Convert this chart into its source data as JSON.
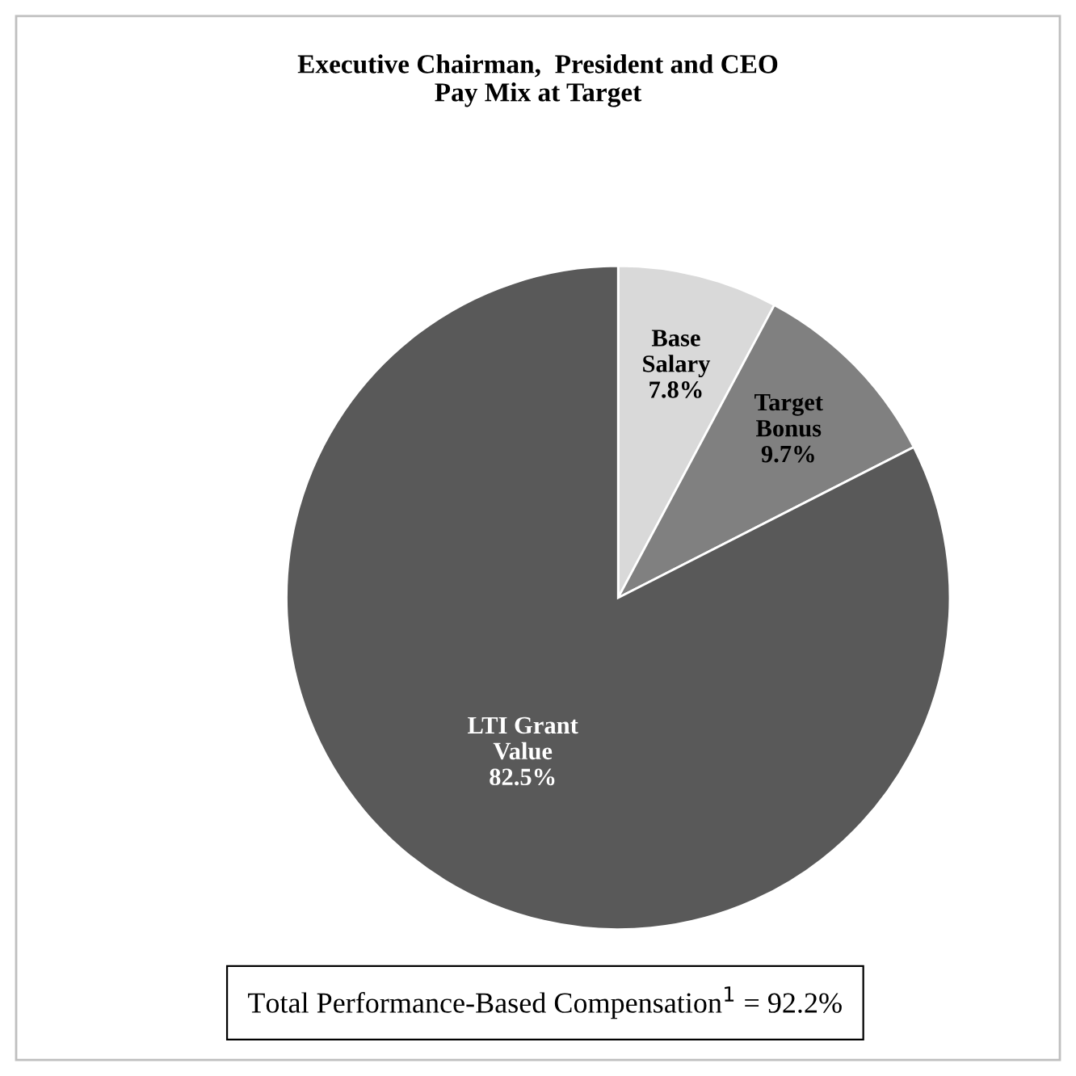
{
  "chart_data": {
    "type": "pie",
    "title": "Executive Chairman,  President and CEO\nPay Mix at Target",
    "categories": [
      "Base\nSalary",
      "Target\nBonus",
      "LTI Grant\nValue"
    ],
    "values": [
      7.8,
      9.7,
      82.5
    ],
    "colors": [
      "#d9d9d9",
      "#808080",
      "#595959"
    ],
    "value_labels": [
      "7.8%",
      "9.7%",
      "82.5%"
    ],
    "annotations": [
      "Total Performance-Based Compensation$^{1}$ = 92.2%"
    ]
  }
}
